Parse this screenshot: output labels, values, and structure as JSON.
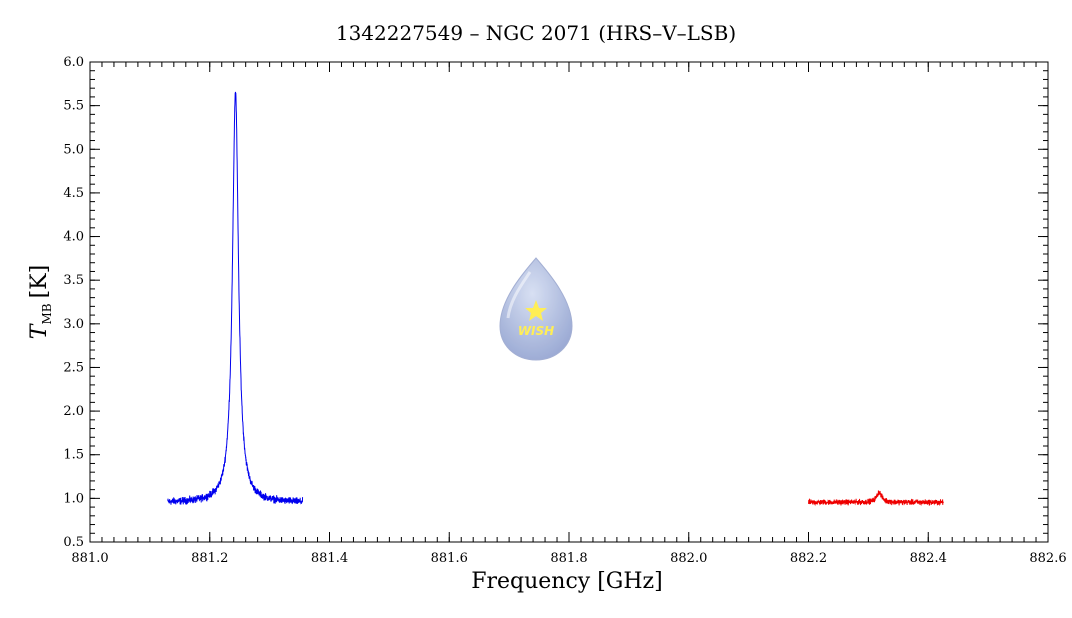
{
  "chart_data": {
    "type": "line",
    "title": "1342227549 – NGC 2071 (HRS–V–LSB)",
    "xlabel": "Frequency [GHz]",
    "ylabel_main": "T",
    "ylabel_sub": "MB",
    "ylabel_unit": "[K]",
    "xlim": [
      881.0,
      882.6
    ],
    "ylim": [
      0.5,
      6.0
    ],
    "xticks": [
      "881.0",
      "881.2",
      "881.4",
      "881.6",
      "881.8",
      "882.0",
      "882.2",
      "882.4",
      "882.6"
    ],
    "yticks": [
      "0.5",
      "1.0",
      "1.5",
      "2.0",
      "2.5",
      "3.0",
      "3.5",
      "4.0",
      "4.5",
      "5.0",
      "5.5",
      "6.0"
    ],
    "grid": false,
    "series": [
      {
        "color": "#0000ee",
        "x_range": [
          881.13,
          881.355
        ],
        "baseline": 0.95,
        "noise": 0.04,
        "peak_center": 881.243,
        "peak_height": 5.66,
        "peak_width": 0.006
      },
      {
        "color": "#ee0000",
        "x_range": [
          882.2,
          882.425
        ],
        "baseline": 0.955,
        "noise": 0.03,
        "peak_center": 882.318,
        "peak_height": 1.07,
        "peak_width": 0.005
      }
    ]
  },
  "logo": {
    "text": "WISH",
    "fill": "#a9b7dc",
    "star": "#ffee55"
  }
}
